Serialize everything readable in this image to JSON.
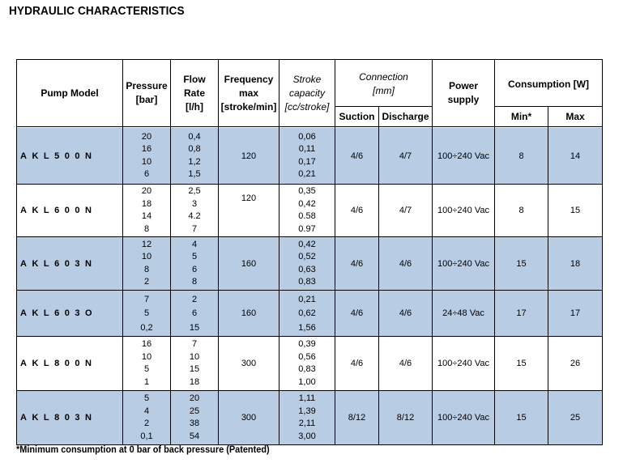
{
  "title": "HYDRAULIC CHARACTERISTICS",
  "header": {
    "pump_model": "Pump Model",
    "pressure": [
      "Pressure",
      "[bar]"
    ],
    "flow_rate": [
      "Flow",
      "Rate",
      "[l/h]"
    ],
    "frequency": [
      "Frequency",
      "max",
      "[stroke/min]"
    ],
    "stroke": [
      "Stroke",
      "capacity",
      "[cc/stroke]"
    ],
    "connection": [
      "Connection",
      "[mm]"
    ],
    "suction": "Suction",
    "discharge": "Discharge",
    "power": [
      "Power",
      "supply"
    ],
    "consumption": "Consumption [W]",
    "min": "Min*",
    "max": "Max"
  },
  "rows": [
    {
      "model": "AKL500N",
      "pressure": [
        "20",
        "16",
        "10",
        "6"
      ],
      "flow": [
        "0,4",
        "0,8",
        "1,2",
        "1,5"
      ],
      "frequency": "120",
      "stroke": [
        "0,06",
        "0,11",
        "0,17",
        "0,21"
      ],
      "suction": "4/6",
      "discharge": "4/7",
      "power": "100÷240 Vac",
      "min": "8",
      "max": "14",
      "shaded": true
    },
    {
      "model": "AKL600N",
      "pressure": [
        "20",
        "18",
        "14",
        "8"
      ],
      "flow": [
        "2,5",
        "3",
        "4.2",
        "7"
      ],
      "frequency": "120",
      "stroke": [
        "0,35",
        "0,42",
        "0.58",
        "0.97"
      ],
      "suction": "4/6",
      "discharge": "4/7",
      "power": "100÷240 Vac",
      "min": "8",
      "max": "15",
      "shaded": false
    },
    {
      "model": "AKL603N",
      "pressure": [
        "12",
        "10",
        "8",
        "2"
      ],
      "flow": [
        "4",
        "5",
        "6",
        "8"
      ],
      "frequency": "160",
      "stroke": [
        "0,42",
        "0,52",
        "0,63",
        "0,83"
      ],
      "suction": "4/6",
      "discharge": "4/6",
      "power": "100÷240 Vac",
      "min": "15",
      "max": "18",
      "shaded": true
    },
    {
      "model": "AKL603O",
      "pressure": [
        "7",
        "5",
        "0,2"
      ],
      "flow": [
        "2",
        "6",
        "15"
      ],
      "frequency": "160",
      "stroke": [
        "0,21",
        "0,62",
        "1,56"
      ],
      "suction": "4/6",
      "discharge": "4/6",
      "power": "24÷48 Vac",
      "min": "17",
      "max": "17",
      "shaded": true
    },
    {
      "model": "AKL800N",
      "pressure": [
        "16",
        "10",
        "5",
        "1"
      ],
      "flow": [
        "7",
        "10",
        "15",
        "18"
      ],
      "frequency": "300",
      "stroke": [
        "0,39",
        "0,56",
        "0,83",
        "1,00"
      ],
      "suction": "4/6",
      "discharge": "4/6",
      "power": "100÷240 Vac",
      "min": "15",
      "max": "26",
      "shaded": false
    },
    {
      "model": "AKL803N",
      "pressure": [
        "5",
        "4",
        "2",
        "0,1"
      ],
      "flow": [
        "20",
        "25",
        "38",
        "54"
      ],
      "frequency": "300",
      "stroke": [
        "1,11",
        "1,39",
        "2,11",
        "3,00"
      ],
      "suction": "8/12",
      "discharge": "8/12",
      "power": "100÷240 Vac",
      "min": "15",
      "max": "25",
      "shaded": true
    }
  ],
  "footnote": "*Minimum consumption at 0 bar of back pressure (Patented)"
}
